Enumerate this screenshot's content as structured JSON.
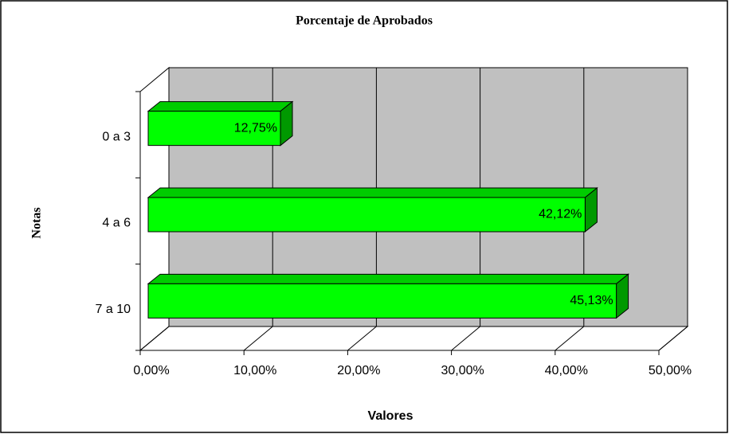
{
  "chart_data": {
    "type": "bar",
    "orientation": "horizontal",
    "title": "Porcentaje de Aprobados",
    "x_label": "Valores",
    "y_label": "Notas",
    "categories": [
      "0 a 3",
      "4 a 6",
      "7 a 10"
    ],
    "values": [
      12.75,
      42.12,
      45.13
    ],
    "value_labels": [
      "12,75%",
      "42,12%",
      "45,13%"
    ],
    "color": "#00ff00",
    "xlim": [
      0,
      50
    ],
    "xticks": [
      {
        "value": 0,
        "label": "0,00%"
      },
      {
        "value": 10,
        "label": "10,00%"
      },
      {
        "value": 20,
        "label": "20,00%"
      },
      {
        "value": 30,
        "label": "30,00%"
      },
      {
        "value": 40,
        "label": "40,00%"
      },
      {
        "value": 50,
        "label": "50,00%"
      }
    ],
    "grid": true
  }
}
